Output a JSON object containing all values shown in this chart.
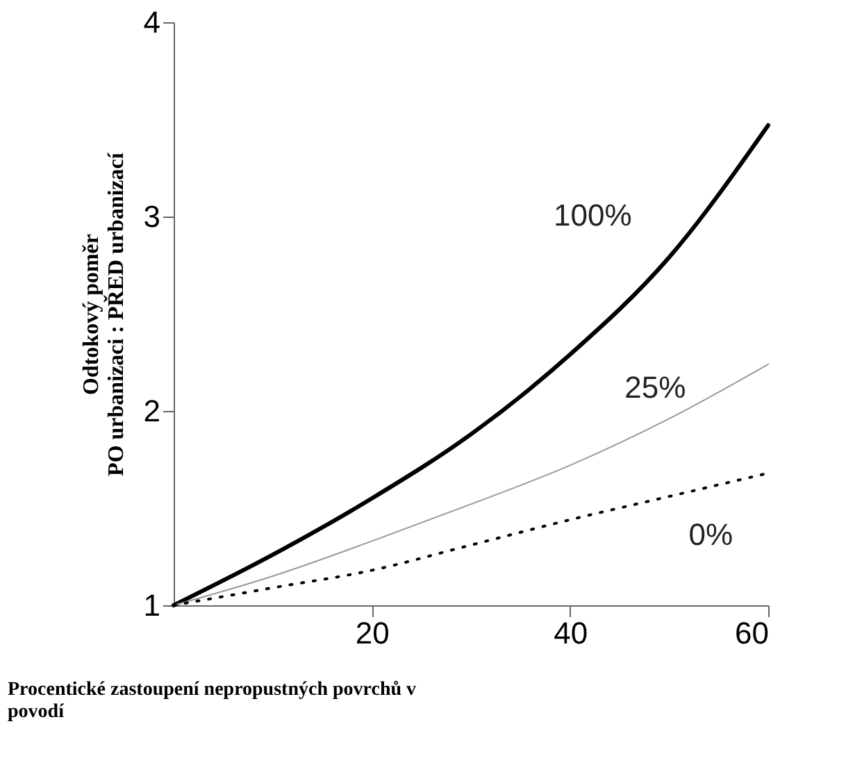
{
  "chart_data": {
    "type": "line",
    "ylabel": "Odtokový poměr\nPO urbanizaci : PŘED urbanizací",
    "xlabel": "Procentické zastoupení nepropustných povrchů v povodí",
    "x": [
      0,
      10,
      20,
      30,
      40,
      50,
      60
    ],
    "series": [
      {
        "name": "100%",
        "color": "#000000",
        "line_style": "solid",
        "values": [
          1,
          1.26,
          1.55,
          1.88,
          2.29,
          2.79,
          3.47
        ]
      },
      {
        "name": "25%",
        "color": "#999999",
        "line_style": "solid",
        "values": [
          1,
          1.15,
          1.33,
          1.52,
          1.72,
          1.96,
          2.24
        ]
      },
      {
        "name": "0%",
        "color": "#000000",
        "line_style": "dotted",
        "values": [
          1,
          1.09,
          1.18,
          1.31,
          1.44,
          1.56,
          1.68
        ]
      }
    ],
    "xlim": [
      0,
      60
    ],
    "xticks": [
      20,
      40,
      60
    ],
    "ylim": [
      1,
      4
    ],
    "yticks": [
      1,
      2,
      3,
      4
    ],
    "grid": false,
    "marker": "none"
  }
}
